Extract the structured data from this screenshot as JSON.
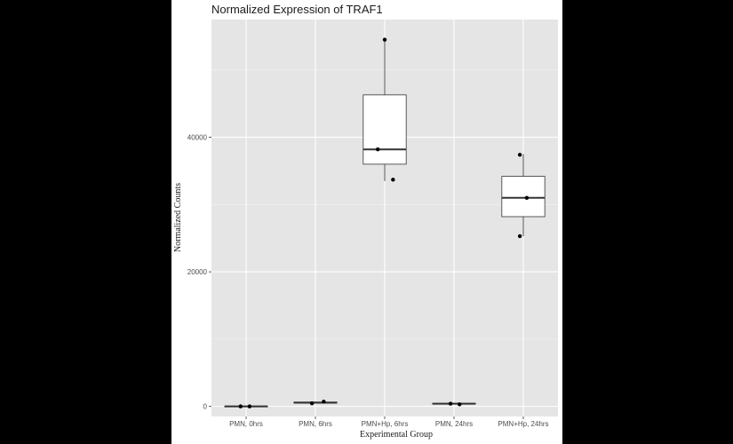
{
  "chart_data": {
    "type": "box",
    "title": "Normalized Expression of TRAF1",
    "xlabel": "Experimental Group",
    "ylabel": "Normalized Counts",
    "categories": [
      "PMN, 0hrs",
      "PMN, 6hrs",
      "PMN+Hp, 6hrs",
      "PMN, 24hrs",
      "PMN+Hp, 24hrs"
    ],
    "ylim": [
      -1500,
      57500
    ],
    "yticks": [
      0,
      20000,
      40000
    ],
    "ytick_labels": [
      "0",
      "20000",
      "40000"
    ],
    "grid": true,
    "boxes": [
      {
        "category": "PMN, 0hrs",
        "whisker_low": 0,
        "q1": 0,
        "median": 0,
        "q3": 0,
        "whisker_high": 0
      },
      {
        "category": "PMN, 6hrs",
        "whisker_low": 450,
        "q1": 500,
        "median": 550,
        "q3": 650,
        "whisker_high": 700
      },
      {
        "category": "PMN+Hp, 6hrs",
        "whisker_low": 33500,
        "q1": 36000,
        "median": 38200,
        "q3": 46300,
        "whisker_high": 54500
      },
      {
        "category": "PMN, 24hrs",
        "whisker_low": 300,
        "q1": 350,
        "median": 400,
        "q3": 450,
        "whisker_high": 500
      },
      {
        "category": "PMN+Hp, 24hrs",
        "whisker_low": 25300,
        "q1": 28200,
        "median": 31000,
        "q3": 34200,
        "whisker_high": 37500
      }
    ],
    "points": [
      {
        "category": "PMN, 0hrs",
        "offset": -0.08,
        "value": 0
      },
      {
        "category": "PMN, 0hrs",
        "offset": 0.05,
        "value": 0
      },
      {
        "category": "PMN, 6hrs",
        "offset": -0.05,
        "value": 450
      },
      {
        "category": "PMN, 6hrs",
        "offset": 0.12,
        "value": 700
      },
      {
        "category": "PMN+Hp, 6hrs",
        "offset": 0.0,
        "value": 54500
      },
      {
        "category": "PMN+Hp, 6hrs",
        "offset": -0.1,
        "value": 38200
      },
      {
        "category": "PMN+Hp, 6hrs",
        "offset": 0.12,
        "value": 33700
      },
      {
        "category": "PMN, 24hrs",
        "offset": -0.05,
        "value": 400
      },
      {
        "category": "PMN, 24hrs",
        "offset": 0.08,
        "value": 300
      },
      {
        "category": "PMN+Hp, 24hrs",
        "offset": -0.05,
        "value": 37400
      },
      {
        "category": "PMN+Hp, 24hrs",
        "offset": 0.05,
        "value": 31000
      },
      {
        "category": "PMN+Hp, 24hrs",
        "offset": -0.05,
        "value": 25300
      }
    ],
    "colors": {
      "panel": "#e5e5e5",
      "grid_major": "#ffffff",
      "box_fill": "#ffffff",
      "box_stroke": "#333333",
      "point": "#000000",
      "frame_background": "#000000"
    }
  }
}
